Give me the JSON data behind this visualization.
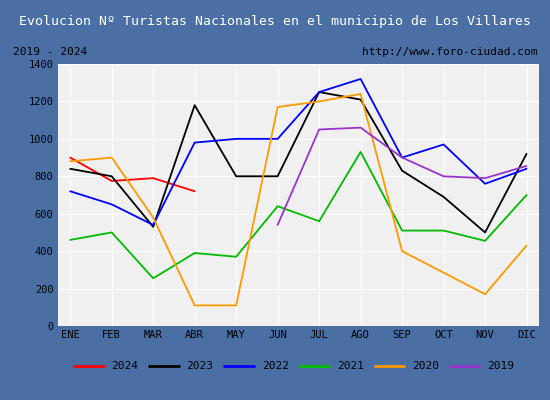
{
  "title": "Evolucion Nº Turistas Nacionales en el municipio de Los Villares",
  "subtitle_left": "2019 - 2024",
  "subtitle_right": "http://www.foro-ciudad.com",
  "months": [
    "ENE",
    "FEB",
    "MAR",
    "ABR",
    "MAY",
    "JUN",
    "JUL",
    "AGO",
    "SEP",
    "OCT",
    "NOV",
    "DIC"
  ],
  "series": {
    "2024": {
      "color": "#ff0000",
      "data": [
        900,
        775,
        790,
        720,
        null,
        null,
        null,
        null,
        null,
        null,
        null,
        null
      ]
    },
    "2023": {
      "color": "#000000",
      "data": [
        840,
        800,
        530,
        1180,
        800,
        800,
        1250,
        1210,
        830,
        690,
        500,
        920
      ]
    },
    "2022": {
      "color": "#0000ff",
      "data": [
        720,
        650,
        540,
        980,
        1000,
        1000,
        1250,
        1320,
        900,
        970,
        760,
        840
      ]
    },
    "2021": {
      "color": "#00bb00",
      "data": [
        460,
        500,
        255,
        390,
        370,
        640,
        560,
        930,
        510,
        510,
        455,
        700
      ]
    },
    "2020": {
      "color": "#ff9900",
      "data": [
        880,
        900,
        580,
        110,
        110,
        1170,
        1200,
        1240,
        400,
        285,
        170,
        430
      ]
    },
    "2019": {
      "color": "#9933cc",
      "data": [
        null,
        null,
        null,
        null,
        null,
        540,
        1050,
        1060,
        900,
        800,
        790,
        855
      ]
    }
  },
  "ylim": [
    0,
    1400
  ],
  "yticks": [
    0,
    200,
    400,
    600,
    800,
    1000,
    1200,
    1400
  ],
  "title_bg_color": "#4a6fa5",
  "title_font_color": "#ffffff",
  "plot_bg_color": "#f0f0f0",
  "outer_bg_color": "#4a6fa5",
  "inner_bg_color": "#ffffff",
  "grid_color": "#ffffff",
  "legend_years": [
    "2024",
    "2023",
    "2022",
    "2021",
    "2020",
    "2019"
  ]
}
